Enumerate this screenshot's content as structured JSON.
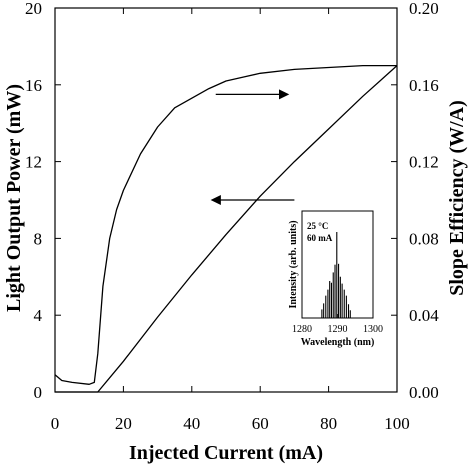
{
  "chart_data": {
    "type": "line",
    "x_label": "Injected Current (mA)",
    "y_label_left": "Light Output Power (mW)",
    "y_label_right": "Slope Efficiency (W/A)",
    "xlim": [
      0,
      100
    ],
    "ylim_left": [
      0,
      20
    ],
    "ylim_right": [
      0,
      0.2
    ],
    "x_ticks": [
      0,
      20,
      40,
      60,
      80,
      100
    ],
    "y_ticks_left": [
      0,
      4,
      8,
      12,
      16,
      20
    ],
    "y_ticks_right": [
      "0.00",
      "0.04",
      "0.08",
      "0.12",
      "0.16",
      "0.20"
    ],
    "series": [
      {
        "axis": "left",
        "x": [
          0,
          10,
          12.5,
          20,
          30,
          40,
          50,
          60,
          70,
          80,
          90,
          100
        ],
        "y": [
          0,
          0,
          0,
          1.6,
          3.9,
          6.1,
          8.2,
          10.2,
          12.0,
          13.7,
          15.4,
          17.0
        ]
      },
      {
        "axis": "right",
        "x": [
          0,
          2,
          5,
          10,
          11.5,
          12.5,
          14,
          16,
          18,
          20,
          25,
          30,
          35,
          40,
          45,
          50,
          55,
          60,
          70,
          80,
          90,
          100
        ],
        "y": [
          0.009,
          0.006,
          0.005,
          0.004,
          0.005,
          0.02,
          0.055,
          0.08,
          0.095,
          0.105,
          0.124,
          0.138,
          0.148,
          0.153,
          0.158,
          0.162,
          0.164,
          0.166,
          0.168,
          0.169,
          0.17,
          0.17
        ]
      }
    ],
    "inset": {
      "type": "spectrum",
      "x_label": "Wavelength (nm)",
      "y_label": "Intensity (arb. units)",
      "xlim": [
        1280,
        1300
      ],
      "x_ticks": [
        1280,
        1290,
        1300
      ],
      "annotation_lines": [
        "25 °C",
        "60 mA"
      ],
      "peaks": {
        "wavelength": [
          1285.6,
          1286.1,
          1286.7,
          1287.3,
          1287.8,
          1288.3,
          1288.8,
          1289.3,
          1289.8,
          1290.3,
          1290.8,
          1291.3,
          1291.9,
          1292.5,
          1293.1,
          1293.6
        ],
        "intensity": [
          0.1,
          0.17,
          0.26,
          0.33,
          0.43,
          0.41,
          0.53,
          0.62,
          1.0,
          0.63,
          0.48,
          0.4,
          0.33,
          0.26,
          0.16,
          0.09
        ]
      }
    }
  }
}
